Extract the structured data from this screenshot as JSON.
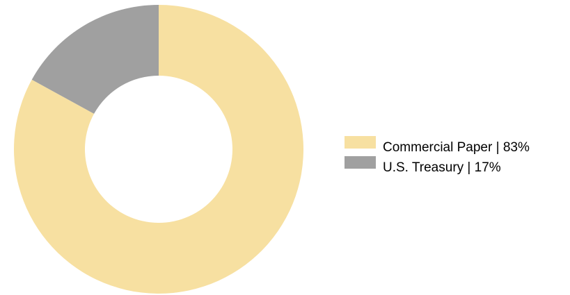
{
  "chart_data": {
    "type": "pie",
    "donut": true,
    "title": "",
    "slices": [
      {
        "label": "Commercial Paper | 83%",
        "category": "Commercial Paper",
        "value": 83,
        "color": "#F7E0A1"
      },
      {
        "label": "U.S. Treasury | 17%",
        "category": "U.S. Treasury",
        "value": 17,
        "color": "#A0A0A0"
      }
    ],
    "legend": {
      "position": "right",
      "entries": [
        "Commercial Paper | 83%",
        "U.S. Treasury | 17%"
      ]
    }
  }
}
